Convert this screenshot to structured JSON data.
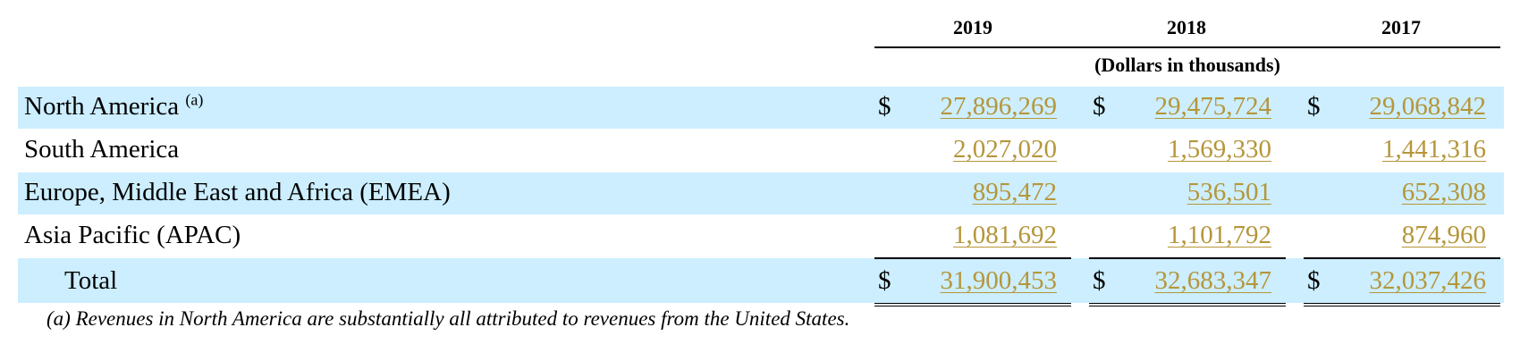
{
  "header": {
    "years": [
      "2019",
      "2018",
      "2017"
    ],
    "units": "(Dollars in thousands)"
  },
  "currency_symbol": "$",
  "rows": [
    {
      "label": "North America",
      "note": "(a)",
      "values": [
        "27,896,269",
        "29,475,724",
        "29,068,842"
      ]
    },
    {
      "label": "South America",
      "values": [
        "2,027,020",
        "1,569,330",
        "1,441,316"
      ]
    },
    {
      "label": "Europe, Middle East and Africa (EMEA)",
      "values": [
        "895,472",
        "536,501",
        "652,308"
      ]
    },
    {
      "label": "Asia Pacific (APAC)",
      "values": [
        "1,081,692",
        "1,101,792",
        "874,960"
      ]
    }
  ],
  "total": {
    "label": "Total",
    "values": [
      "31,900,453",
      "32,683,347",
      "32,037,426"
    ]
  },
  "footnote": "(a) Revenues in North America are substantially all attributed to revenues from the United States.",
  "colors": {
    "band": "#cceeff",
    "link": "#b5963a"
  }
}
